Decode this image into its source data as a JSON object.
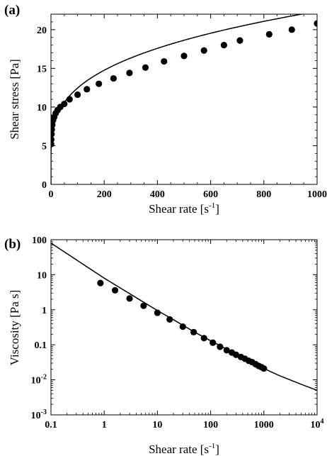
{
  "chart_data": [
    {
      "type": "scatter",
      "panel_label": "(a)",
      "xlabel": "Shear rate [s",
      "xlabel_sup": "-1",
      "xlabel_end": "]",
      "ylabel": "Shear stress [Pa]",
      "xlim": [
        0,
        1000
      ],
      "ylim": [
        0,
        22
      ],
      "x_scale": "linear",
      "y_scale": "linear",
      "x_ticks": [
        0,
        200,
        400,
        600,
        800,
        1000
      ],
      "x_tick_labels": [
        "0",
        "200",
        "400",
        "600",
        "800",
        "1000"
      ],
      "y_ticks": [
        0,
        5,
        10,
        15,
        20
      ],
      "y_tick_labels": [
        "0",
        "5",
        "10",
        "15",
        "20"
      ],
      "grid": false,
      "series": [
        {
          "kind": "points",
          "x": [
            0.5,
            1,
            2,
            3,
            5,
            8,
            12,
            18,
            25,
            35,
            50,
            70,
            100,
            135,
            180,
            235,
            295,
            355,
            425,
            500,
            575,
            650,
            710,
            820,
            905,
            1000
          ],
          "y": [
            5.2,
            5.8,
            6.5,
            7.1,
            7.7,
            8.3,
            8.7,
            9.2,
            9.6,
            10.0,
            10.4,
            11.0,
            11.6,
            12.3,
            13.0,
            13.7,
            14.4,
            15.1,
            15.9,
            16.6,
            17.3,
            18.0,
            18.6,
            19.4,
            20.0,
            20.8
          ]
        },
        {
          "kind": "line",
          "model": {
            "tau0": 2.5,
            "k": 2.5,
            "n": 0.3
          }
        }
      ]
    },
    {
      "type": "scatter",
      "panel_label": "(b)",
      "xlabel": "Shear rate [s",
      "xlabel_sup": "-1",
      "xlabel_end": "]",
      "ylabel": "Viscosity [Pa s]",
      "xlim": [
        0.1,
        10000
      ],
      "ylim": [
        0.001,
        100
      ],
      "x_scale": "log",
      "y_scale": "log",
      "x_ticks": [
        0.1,
        1,
        10,
        100,
        1000,
        10000
      ],
      "x_tick_labels": [
        {
          "base": "0.1",
          "sup": ""
        },
        {
          "base": "1",
          "sup": ""
        },
        {
          "base": "10",
          "sup": ""
        },
        {
          "base": "100",
          "sup": ""
        },
        {
          "base": "1000",
          "sup": ""
        },
        {
          "base": "10",
          "sup": "4"
        }
      ],
      "y_ticks": [
        0.001,
        0.01,
        0.1,
        1,
        10,
        100
      ],
      "y_tick_labels": [
        {
          "base": "10",
          "sup": "-3"
        },
        {
          "base": "10",
          "sup": "-2"
        },
        {
          "base": "0.1",
          "sup": ""
        },
        {
          "base": "1",
          "sup": ""
        },
        {
          "base": "10",
          "sup": ""
        },
        {
          "base": "100",
          "sup": ""
        }
      ],
      "grid": false,
      "series": [
        {
          "kind": "points",
          "x": [
            0.85,
            1.6,
            3.0,
            5.5,
            10,
            17,
            30,
            48,
            75,
            110,
            150,
            200,
            250,
            300,
            370,
            440,
            520,
            600,
            700,
            800,
            900,
            1000
          ],
          "y": [
            5.8,
            3.6,
            2.1,
            1.3,
            0.82,
            0.53,
            0.33,
            0.23,
            0.155,
            0.115,
            0.088,
            0.07,
            0.06,
            0.052,
            0.045,
            0.04,
            0.035,
            0.032,
            0.028,
            0.025,
            0.023,
            0.021
          ]
        },
        {
          "kind": "line",
          "x": [
            0.1,
            0.2,
            0.5,
            1,
            2,
            5,
            10,
            20,
            50,
            100,
            200,
            500,
            1000,
            2000,
            5000,
            10000
          ],
          "y": [
            80,
            40,
            16,
            8,
            4.2,
            1.8,
            0.95,
            0.52,
            0.23,
            0.13,
            0.075,
            0.036,
            0.021,
            0.013,
            0.0075,
            0.005
          ]
        }
      ]
    }
  ]
}
